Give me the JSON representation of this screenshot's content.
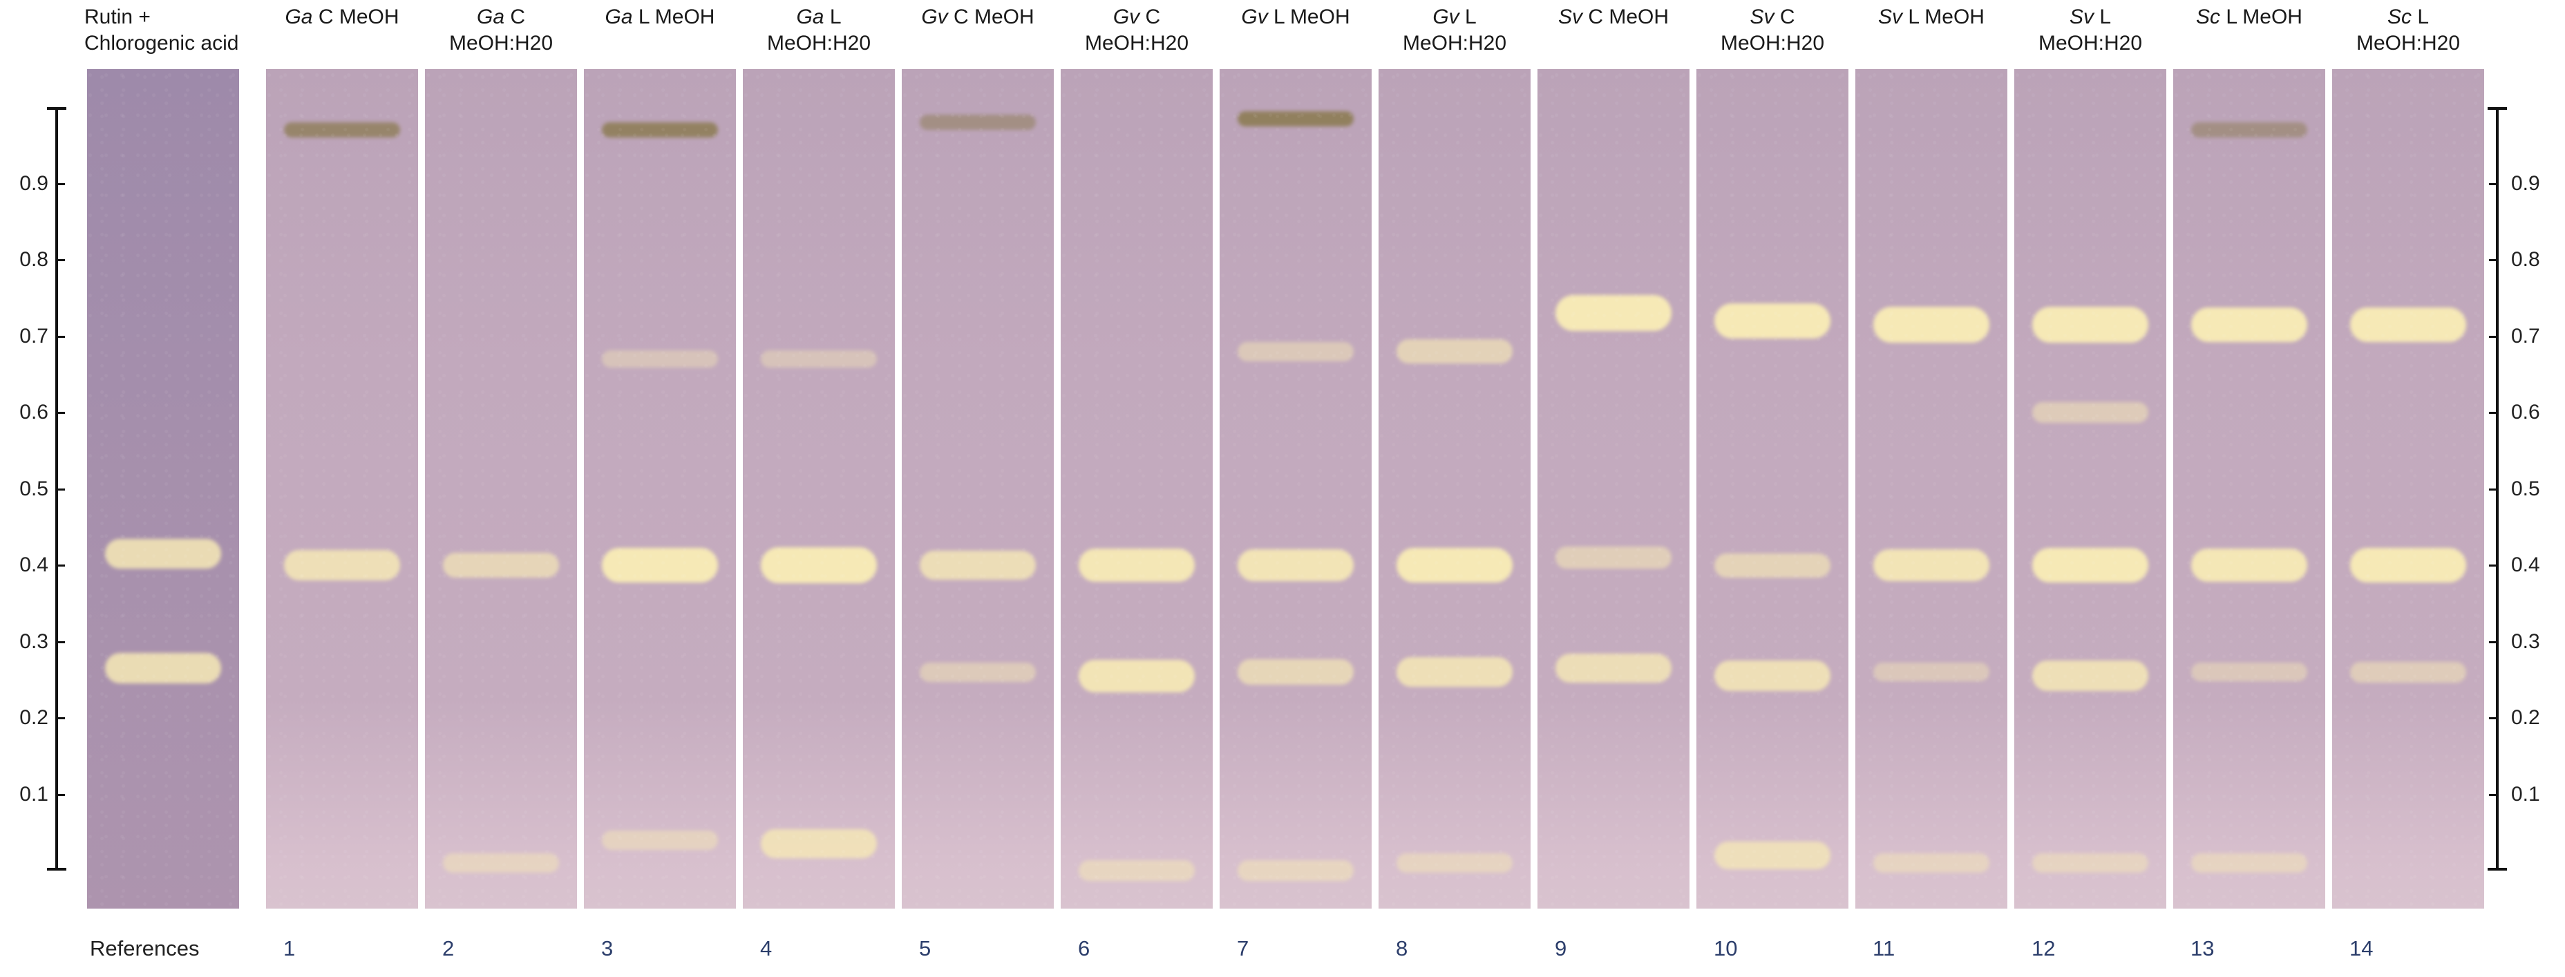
{
  "lanes": [
    {
      "header": {
        "italic": "",
        "line1": "Rutin +",
        "line2": "Chlorogenic acid"
      },
      "number": "References",
      "reference": true,
      "bands": [
        {
          "rf": 0.415,
          "intensity": 0.75,
          "color": "yellow"
        },
        {
          "rf": 0.265,
          "intensity": 0.75,
          "color": "yellow"
        }
      ]
    },
    {
      "header": {
        "italic": "Ga",
        "line1": " C MeOH",
        "line2": ""
      },
      "number": "1",
      "bands": [
        {
          "rf": 0.97,
          "intensity": 0.6,
          "color": "brown"
        },
        {
          "rf": 0.4,
          "intensity": 0.75,
          "color": "yellow"
        }
      ]
    },
    {
      "header": {
        "italic": "Ga",
        "line1": " C",
        "line2": "MeOH:H20"
      },
      "number": "2",
      "bands": [
        {
          "rf": 0.4,
          "intensity": 0.55,
          "color": "yellow"
        },
        {
          "rf": 0.01,
          "intensity": 0.3,
          "color": "yellow"
        }
      ]
    },
    {
      "header": {
        "italic": "Ga",
        "line1": " L MeOH",
        "line2": ""
      },
      "number": "3",
      "bands": [
        {
          "rf": 0.97,
          "intensity": 0.7,
          "color": "brown"
        },
        {
          "rf": 0.67,
          "intensity": 0.2,
          "color": "yellow"
        },
        {
          "rf": 0.4,
          "intensity": 0.95,
          "color": "yellow"
        },
        {
          "rf": 0.04,
          "intensity": 0.3,
          "color": "yellow"
        }
      ]
    },
    {
      "header": {
        "italic": "Ga",
        "line1": " L",
        "line2": "MeOH:H20"
      },
      "number": "4",
      "bands": [
        {
          "rf": 0.67,
          "intensity": 0.2,
          "color": "yellow"
        },
        {
          "rf": 0.4,
          "intensity": 1.0,
          "color": "yellow"
        },
        {
          "rf": 0.035,
          "intensity": 0.7,
          "color": "yellow"
        }
      ]
    },
    {
      "header": {
        "italic": "Gv",
        "line1": " C MeOH",
        "line2": ""
      },
      "number": "5",
      "bands": [
        {
          "rf": 0.98,
          "intensity": 0.3,
          "color": "brown"
        },
        {
          "rf": 0.4,
          "intensity": 0.7,
          "color": "yellow"
        },
        {
          "rf": 0.26,
          "intensity": 0.3,
          "color": "yellow"
        }
      ]
    },
    {
      "header": {
        "italic": "Gv",
        "line1": " C",
        "line2": "MeOH:H20"
      },
      "number": "6",
      "bands": [
        {
          "rf": 0.4,
          "intensity": 0.9,
          "color": "yellow"
        },
        {
          "rf": 0.255,
          "intensity": 0.85,
          "color": "yellow"
        },
        {
          "rf": 0.0,
          "intensity": 0.35,
          "color": "yellow"
        }
      ]
    },
    {
      "header": {
        "italic": "Gv",
        "line1": " L MeOH",
        "line2": ""
      },
      "number": "7",
      "bands": [
        {
          "rf": 0.985,
          "intensity": 0.75,
          "color": "brown"
        },
        {
          "rf": 0.68,
          "intensity": 0.3,
          "color": "yellow"
        },
        {
          "rf": 0.4,
          "intensity": 0.85,
          "color": "yellow"
        },
        {
          "rf": 0.26,
          "intensity": 0.55,
          "color": "yellow"
        },
        {
          "rf": 0.0,
          "intensity": 0.35,
          "color": "yellow"
        }
      ]
    },
    {
      "header": {
        "italic": "Gv",
        "line1": " L",
        "line2": "MeOH:H20"
      },
      "number": "8",
      "bands": [
        {
          "rf": 0.68,
          "intensity": 0.5,
          "color": "yellow"
        },
        {
          "rf": 0.4,
          "intensity": 0.95,
          "color": "yellow"
        },
        {
          "rf": 0.26,
          "intensity": 0.75,
          "color": "yellow"
        },
        {
          "rf": 0.01,
          "intensity": 0.3,
          "color": "yellow"
        }
      ]
    },
    {
      "header": {
        "italic": "Sv",
        "line1": " C MeOH",
        "line2": ""
      },
      "number": "9",
      "bands": [
        {
          "rf": 0.73,
          "intensity": 1.0,
          "color": "yellow"
        },
        {
          "rf": 0.41,
          "intensity": 0.4,
          "color": "yellow"
        },
        {
          "rf": 0.265,
          "intensity": 0.7,
          "color": "yellow"
        }
      ]
    },
    {
      "header": {
        "italic": "Sv",
        "line1": " C",
        "line2": "MeOH:H20"
      },
      "number": "10",
      "bands": [
        {
          "rf": 0.72,
          "intensity": 0.95,
          "color": "yellow"
        },
        {
          "rf": 0.4,
          "intensity": 0.5,
          "color": "yellow"
        },
        {
          "rf": 0.255,
          "intensity": 0.75,
          "color": "yellow"
        },
        {
          "rf": 0.02,
          "intensity": 0.65,
          "color": "yellow"
        }
      ]
    },
    {
      "header": {
        "italic": "Sv",
        "line1": " L MeOH",
        "line2": ""
      },
      "number": "11",
      "bands": [
        {
          "rf": 0.715,
          "intensity": 1.0,
          "color": "yellow"
        },
        {
          "rf": 0.4,
          "intensity": 0.85,
          "color": "yellow"
        },
        {
          "rf": 0.26,
          "intensity": 0.25,
          "color": "yellow"
        },
        {
          "rf": 0.01,
          "intensity": 0.3,
          "color": "yellow"
        }
      ]
    },
    {
      "header": {
        "italic": "Sv",
        "line1": " L",
        "line2": "MeOH:H20"
      },
      "number": "12",
      "bands": [
        {
          "rf": 0.715,
          "intensity": 1.0,
          "color": "yellow"
        },
        {
          "rf": 0.6,
          "intensity": 0.35,
          "color": "yellow"
        },
        {
          "rf": 0.4,
          "intensity": 0.95,
          "color": "yellow"
        },
        {
          "rf": 0.255,
          "intensity": 0.75,
          "color": "yellow"
        },
        {
          "rf": 0.01,
          "intensity": 0.3,
          "color": "yellow"
        }
      ]
    },
    {
      "header": {
        "italic": "Sc",
        "line1": " L MeOH",
        "line2": ""
      },
      "number": "13",
      "bands": [
        {
          "rf": 0.97,
          "intensity": 0.3,
          "color": "brown"
        },
        {
          "rf": 0.715,
          "intensity": 0.95,
          "color": "yellow"
        },
        {
          "rf": 0.4,
          "intensity": 0.9,
          "color": "yellow"
        },
        {
          "rf": 0.26,
          "intensity": 0.25,
          "color": "yellow"
        },
        {
          "rf": 0.01,
          "intensity": 0.3,
          "color": "yellow"
        }
      ]
    },
    {
      "header": {
        "italic": "Sc",
        "line1": " L",
        "line2": "MeOH:H20"
      },
      "number": "14",
      "bands": [
        {
          "rf": 0.715,
          "intensity": 0.95,
          "color": "yellow"
        },
        {
          "rf": 0.4,
          "intensity": 0.95,
          "color": "yellow"
        },
        {
          "rf": 0.26,
          "intensity": 0.35,
          "color": "yellow"
        }
      ]
    }
  ],
  "scale": {
    "min": 0,
    "max": 1.0,
    "ticks": [
      "0.1",
      "0.2",
      "0.3",
      "0.4",
      "0.5",
      "0.6",
      "0.7",
      "0.8",
      "0.9"
    ]
  },
  "colors": {
    "plate": "#c2a9bd",
    "reference_plate": "#a891ad",
    "band_yellow": "#f6e9b6",
    "band_brown": "#8a7a4f",
    "lane_number": "#2c3e6b"
  }
}
